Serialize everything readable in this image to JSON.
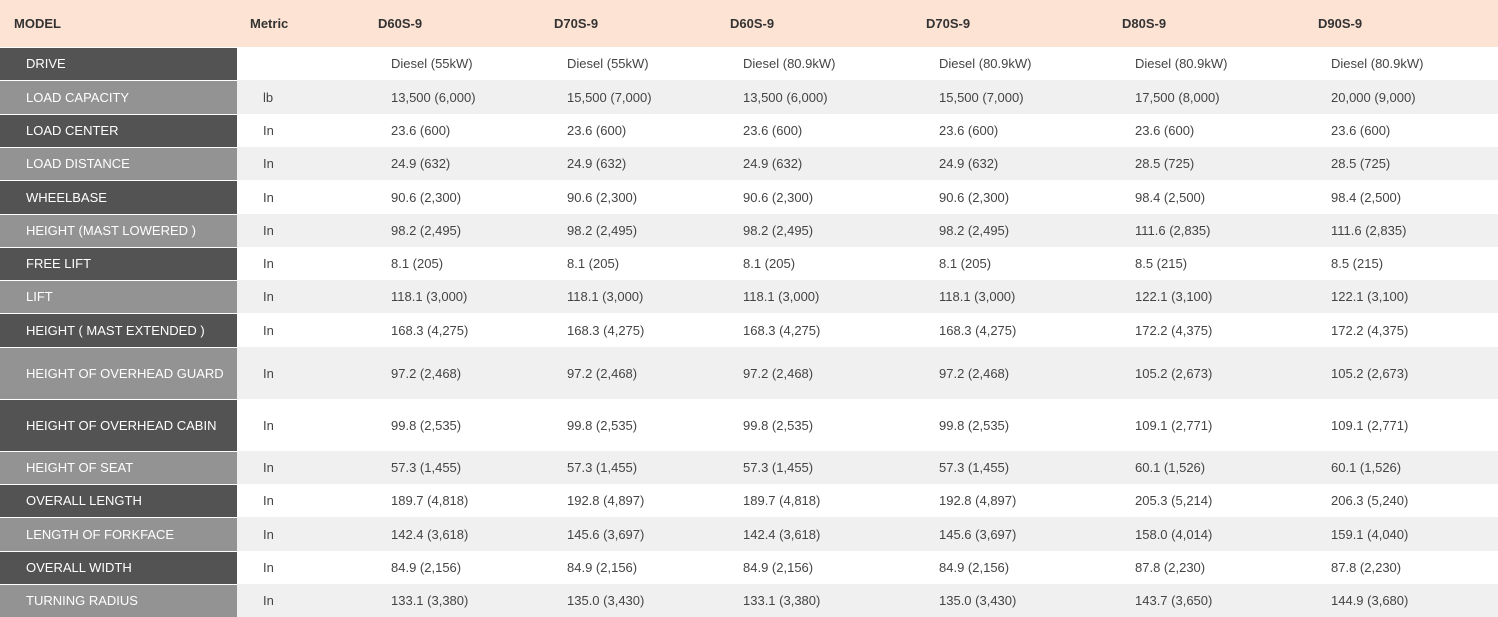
{
  "table": {
    "header": {
      "model_label": "MODEL",
      "metric_label": "Metric",
      "models": [
        "D60S-9",
        "D70S-9",
        "D60S-9",
        "D70S-9",
        "D80S-9",
        "D90S-9"
      ]
    },
    "rows": [
      {
        "label": "DRIVE",
        "values": [
          "Diesel (55kW)",
          "Diesel (55kW)",
          "Diesel (80.9kW)",
          "Diesel (80.9kW)",
          "Diesel (80.9kW)",
          "Diesel (80.9kW)"
        ]
      },
      {
        "label": "LOAD CAPACITY",
        "metric": "lb",
        "values": [
          "13,500 (6,000)",
          "15,500 (7,000)",
          "13,500 (6,000)",
          "15,500 (7,000)",
          "17,500 (8,000)",
          "20,000 (9,000)"
        ]
      },
      {
        "label": "LOAD CENTER",
        "metric": "In",
        "values": [
          "23.6 (600)",
          "23.6 (600)",
          "23.6 (600)",
          "23.6 (600)",
          "23.6 (600)",
          "23.6 (600)"
        ]
      },
      {
        "label": "LOAD DISTANCE",
        "metric": "In",
        "values": [
          "24.9 (632)",
          "24.9 (632)",
          "24.9 (632)",
          "24.9 (632)",
          "28.5 (725)",
          "28.5 (725)"
        ]
      },
      {
        "label": "WHEELBASE",
        "metric": "In",
        "values": [
          "90.6 (2,300)",
          "90.6 (2,300)",
          "90.6 (2,300)",
          "90.6 (2,300)",
          "98.4 (2,500)",
          "98.4 (2,500)"
        ]
      },
      {
        "label": "HEIGHT (MAST LOWERED )",
        "metric": "In",
        "values": [
          "98.2 (2,495)",
          "98.2 (2,495)",
          "98.2 (2,495)",
          "98.2 (2,495)",
          "111.6 (2,835)",
          "111.6 (2,835)"
        ]
      },
      {
        "label": "FREE LIFT",
        "metric": "In",
        "values": [
          "8.1 (205)",
          "8.1 (205)",
          "8.1 (205)",
          "8.1 (205)",
          "8.5 (215)",
          "8.5 (215)"
        ]
      },
      {
        "label": "LIFT",
        "metric": "In",
        "values": [
          "118.1 (3,000)",
          "118.1 (3,000)",
          "118.1 (3,000)",
          "118.1 (3,000)",
          "122.1 (3,100)",
          "122.1 (3,100)"
        ]
      },
      {
        "label": "HEIGHT ( MAST EXTENDED )",
        "metric": "In",
        "values": [
          "168.3 (4,275)",
          "168.3 (4,275)",
          "168.3 (4,275)",
          "168.3 (4,275)",
          "172.2 (4,375)",
          "172.2 (4,375)"
        ]
      },
      {
        "label": "HEIGHT OF OVERHEAD GUARD",
        "metric": "In",
        "values": [
          "97.2 (2,468)",
          "97.2 (2,468)",
          "97.2 (2,468)",
          "97.2 (2,468)",
          "105.2 (2,673)",
          "105.2 (2,673)"
        ]
      },
      {
        "label": "HEIGHT OF OVERHEAD CABIN",
        "metric": "In",
        "values": [
          "99.8 (2,535)",
          "99.8 (2,535)",
          "99.8 (2,535)",
          "99.8 (2,535)",
          "109.1 (2,771)",
          "109.1 (2,771)"
        ]
      },
      {
        "label": "HEIGHT OF SEAT",
        "metric": "In",
        "values": [
          "57.3 (1,455)",
          "57.3 (1,455)",
          "57.3 (1,455)",
          "57.3 (1,455)",
          "60.1 (1,526)",
          "60.1 (1,526)"
        ]
      },
      {
        "label": "OVERALL LENGTH",
        "metric": "In",
        "values": [
          "189.7 (4,818)",
          "192.8 (4,897)",
          "189.7 (4,818)",
          "192.8 (4,897)",
          "205.3 (5,214)",
          "206.3 (5,240)"
        ]
      },
      {
        "label": "LENGTH OF FORKFACE",
        "metric": "In",
        "values": [
          "142.4 (3,618)",
          "145.6 (3,697)",
          "142.4 (3,618)",
          "145.6 (3,697)",
          "158.0 (4,014)",
          "159.1 (4,040)"
        ]
      },
      {
        "label": "OVERALL WIDTH",
        "metric": "In",
        "values": [
          "84.9 (2,156)",
          "84.9 (2,156)",
          "84.9 (2,156)",
          "84.9 (2,156)",
          "87.8 (2,230)",
          "87.8 (2,230)"
        ]
      },
      {
        "label": "TURNING RADIUS",
        "metric": "In",
        "values": [
          "133.1 (3,380)",
          "135.0 (3,430)",
          "133.1 (3,380)",
          "135.0 (3,430)",
          "143.7 (3,650)",
          "144.9 (3,680)"
        ]
      }
    ]
  },
  "colors": {
    "header_bg": "#fde3d3",
    "label_dark": "#535353",
    "label_light": "#939393",
    "row_alt": "#f0f0f0",
    "text": "#444444",
    "head_text": "#333333"
  }
}
